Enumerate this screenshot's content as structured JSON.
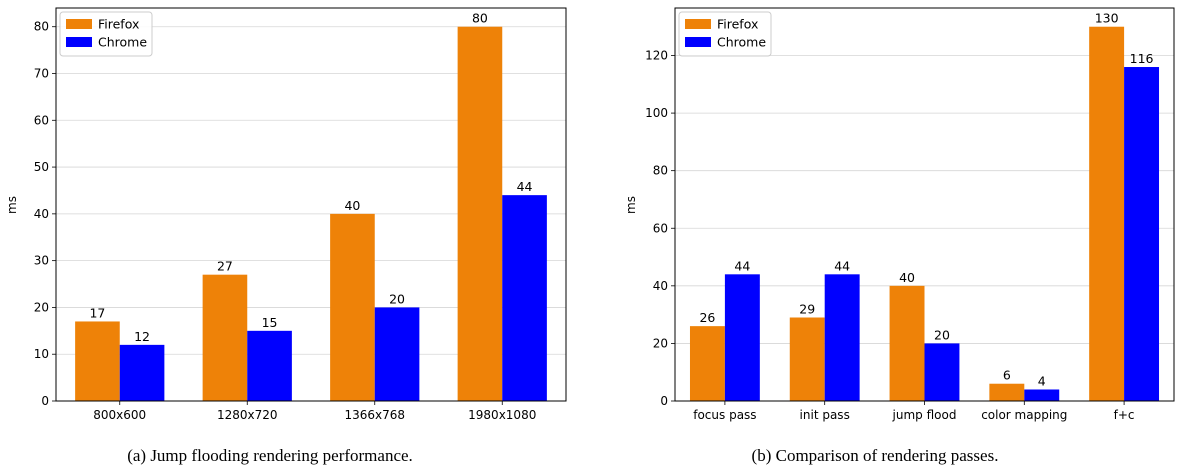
{
  "colors": {
    "firefox": "#EE8208",
    "chrome": "#0000FF",
    "grid": "#d6d6d6"
  },
  "captions": [
    "(a) Jump flooding rendering performance.",
    "(b) Comparison of rendering passes."
  ],
  "chart_data": [
    {
      "type": "bar",
      "categories": [
        "800x600",
        "1280x720",
        "1366x768",
        "1980x1080"
      ],
      "series": [
        {
          "name": "Firefox",
          "values": [
            17,
            27,
            40,
            80
          ]
        },
        {
          "name": "Chrome",
          "values": [
            12,
            15,
            20,
            44
          ]
        }
      ],
      "ylabel": "ms",
      "ylim": [
        0,
        84
      ],
      "yticks": [
        0,
        10,
        20,
        30,
        40,
        50,
        60,
        70,
        80
      ],
      "grid": true,
      "legend": "top-left"
    },
    {
      "type": "bar",
      "categories": [
        "focus pass",
        "init pass",
        "jump flood",
        "color mapping",
        "f+c"
      ],
      "series": [
        {
          "name": "Firefox",
          "values": [
            26,
            29,
            40,
            6,
            130
          ]
        },
        {
          "name": "Chrome",
          "values": [
            44,
            44,
            20,
            4,
            116
          ]
        }
      ],
      "ylabel": "ms",
      "ylim": [
        0,
        136.5
      ],
      "yticks": [
        0,
        20,
        40,
        60,
        80,
        100,
        120
      ],
      "grid": true,
      "legend": "top-left"
    }
  ]
}
